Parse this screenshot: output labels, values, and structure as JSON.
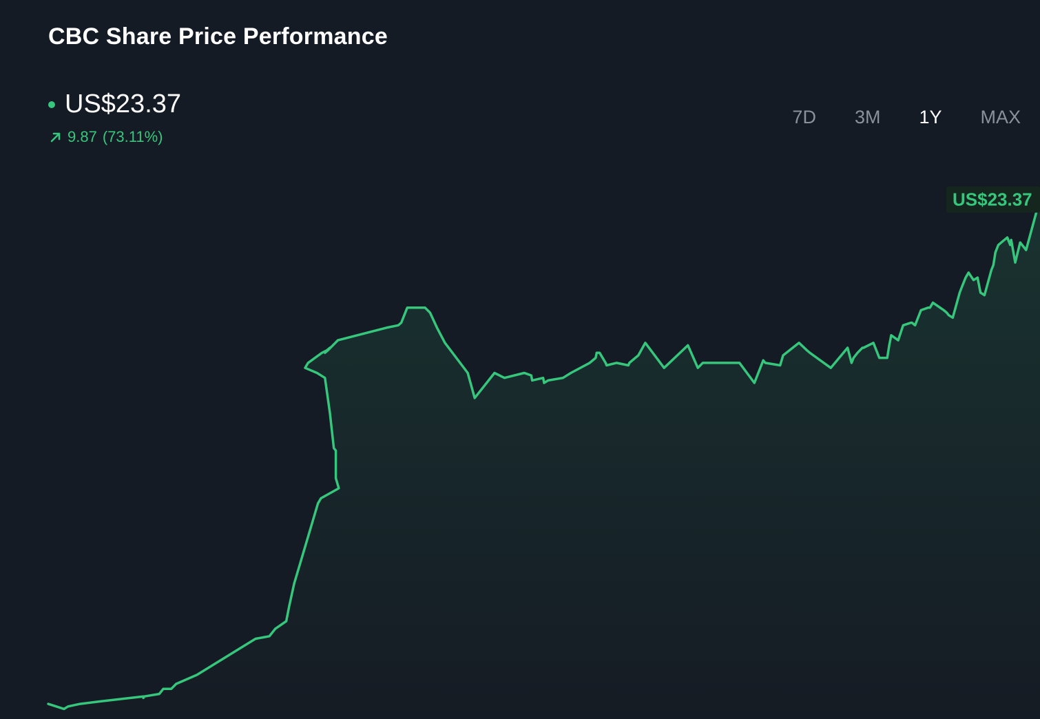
{
  "title": "CBC Share Price Performance",
  "price": "US$23.37",
  "change_value": "9.87",
  "change_percent": "(73.11%)",
  "tabs": [
    {
      "label": "7D",
      "active": false
    },
    {
      "label": "3M",
      "active": false
    },
    {
      "label": "1Y",
      "active": true
    },
    {
      "label": "MAX",
      "active": false
    }
  ],
  "colors": {
    "accent": "#36c77d",
    "background": "#151b24",
    "tab_inactive": "#8b919a",
    "tab_active": "#ffffff"
  },
  "icons": {
    "price_dot": "dot-icon",
    "change_arrow": "arrow-up-right-icon"
  },
  "chart_data": {
    "type": "area",
    "title": "CBC Share Price Performance",
    "xlabel": "",
    "ylabel": "",
    "ylim": [
      13.0,
      25.0
    ],
    "grid": false,
    "legend": "none",
    "last_value_label": "US$23.37",
    "series": [
      {
        "x": [
          0,
          0.016,
          0.02,
          0.032,
          0.052,
          0.096,
          0.096,
          0.097,
          0.112,
          0.116,
          0.124,
          0.129,
          0.15,
          0.209,
          0.223,
          0.229,
          0.24,
          0.243,
          0.248,
          0.26,
          0.272,
          0.275,
          0.293,
          0.29,
          0.29,
          0.288,
          0.284,
          0.279,
          0.271,
          0.259,
          0.262,
          0.276,
          0.281,
          0.284,
          0.279,
          0.282,
          0.292,
          0.341,
          0.353,
          0.356,
          0.362,
          0.38,
          0.385,
          0.392,
          0.4,
          0.423,
          0.43,
          0.45,
          0.46,
          0.48,
          0.487,
          0.488,
          0.499,
          0.5,
          0.504,
          0.519,
          0.527,
          0.546,
          0.552,
          0.553,
          0.556,
          0.562,
          0.563,
          0.573,
          0.585,
          0.586,
          0.595,
          0.602,
          0.621,
          0.645,
          0.655,
          0.66,
          0.697,
          0.712,
          0.721,
          0.723,
          0.738,
          0.741,
          0.757,
          0.765,
          0.768,
          0.789,
          0.806,
          0.81,
          0.812,
          0.816,
          0.821,
          0.822,
          0.832,
          0.838,
          0.846,
          0.848,
          0.85,
          0.857,
          0.862,
          0.87,
          0.871,
          0.874,
          0.88,
          0.887,
          0.889,
          0.892,
          0.903,
          0.906,
          0.908,
          0.912,
          0.919,
          0.921,
          0.925,
          0.928,
          0.933,
          0.937,
          0.94,
          0.944,
          0.951,
          0.953,
          0.955,
          0.958,
          0.967,
          0.97,
          0.971,
          0.975,
          0.98,
          0.984,
          0.986,
          1.0
        ],
        "values": [
          13.3,
          13.2,
          13.25,
          13.3,
          13.35,
          13.45,
          13.42,
          13.45,
          13.5,
          13.6,
          13.6,
          13.7,
          13.88,
          14.6,
          14.65,
          14.8,
          14.95,
          15.25,
          15.7,
          16.5,
          17.3,
          17.4,
          17.6,
          17.8,
          18.35,
          18.4,
          19.1,
          19.8,
          19.9,
          20.0,
          20.1,
          20.3,
          20.35,
          20.4,
          20.3,
          20.35,
          20.55,
          20.8,
          20.85,
          20.9,
          21.2,
          21.2,
          21.1,
          20.8,
          20.5,
          19.9,
          19.4,
          19.9,
          19.8,
          19.9,
          19.85,
          19.75,
          19.8,
          19.7,
          19.75,
          19.8,
          19.9,
          20.1,
          20.2,
          20.3,
          20.3,
          20.1,
          20.05,
          20.1,
          20.05,
          20.1,
          20.25,
          20.5,
          20.0,
          20.45,
          20.0,
          20.1,
          20.1,
          19.7,
          20.15,
          20.1,
          20.05,
          20.25,
          20.5,
          20.35,
          20.3,
          20.0,
          20.4,
          20.1,
          20.2,
          20.3,
          20.4,
          20.4,
          20.5,
          20.2,
          20.2,
          20.45,
          20.65,
          20.55,
          20.85,
          20.9,
          20.9,
          20.85,
          21.15,
          21.2,
          21.2,
          21.3,
          21.15,
          21.1,
          21.05,
          21.0,
          21.5,
          21.6,
          21.8,
          21.9,
          21.75,
          21.8,
          21.5,
          21.45,
          21.95,
          22.05,
          22.3,
          22.45,
          22.6,
          22.45,
          22.55,
          22.1,
          22.5,
          22.4,
          22.35,
          23.37
        ]
      }
    ]
  }
}
